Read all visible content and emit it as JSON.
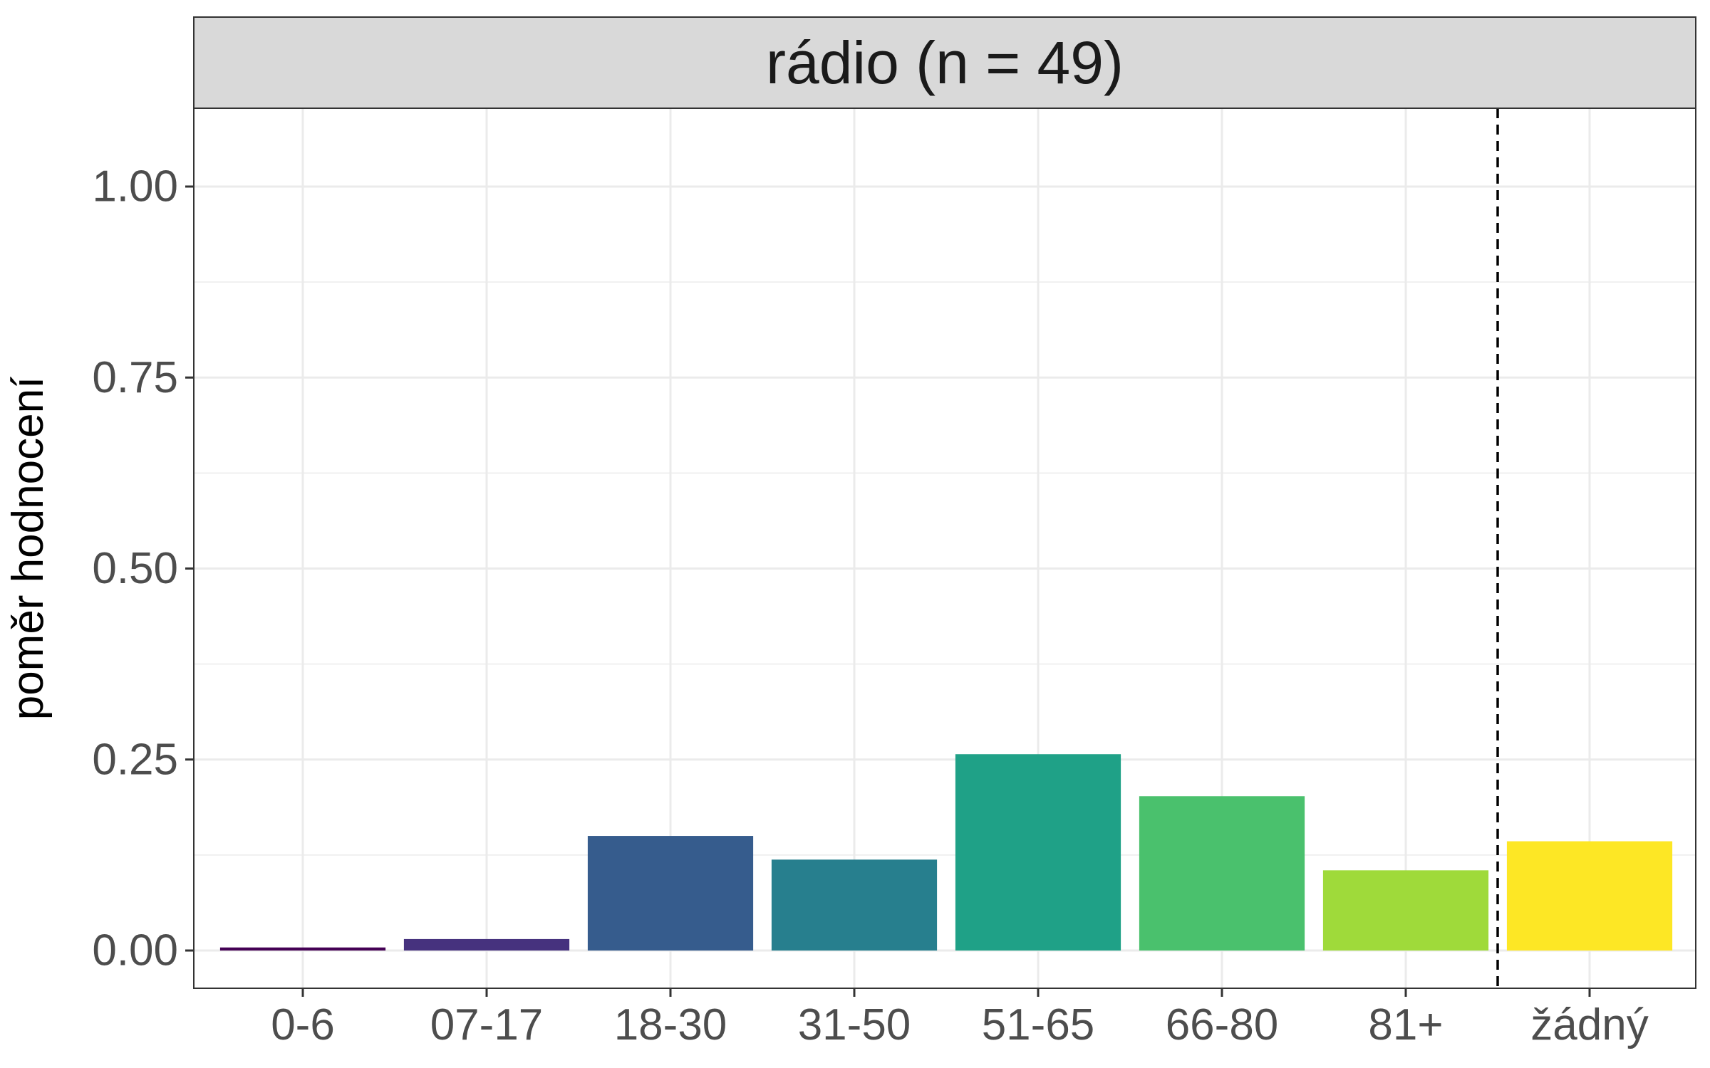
{
  "chart_data": {
    "type": "bar",
    "facet_title": "rádio (n = 49)",
    "xlabel": "",
    "ylabel": "poměr hodnocení",
    "categories": [
      "0-6",
      "07-17",
      "18-30",
      "31-50",
      "51-65",
      "66-80",
      "81+",
      "žádný"
    ],
    "values": [
      0.004,
      0.015,
      0.15,
      0.119,
      0.257,
      0.202,
      0.105,
      0.143
    ],
    "colors": [
      "#440154",
      "#46327E",
      "#365C8D",
      "#277F8E",
      "#1FA187",
      "#4AC16D",
      "#9FDA3A",
      "#FDE725"
    ],
    "ylim": [
      0,
      1.1
    ],
    "yticks": [
      0,
      0.25,
      0.5,
      0.75,
      1.0
    ],
    "ytick_labels": [
      "0.00",
      "0.25",
      "0.50",
      "0.75",
      "1.00"
    ],
    "separator_after_category": "81+",
    "grid": true,
    "legend": "none"
  }
}
